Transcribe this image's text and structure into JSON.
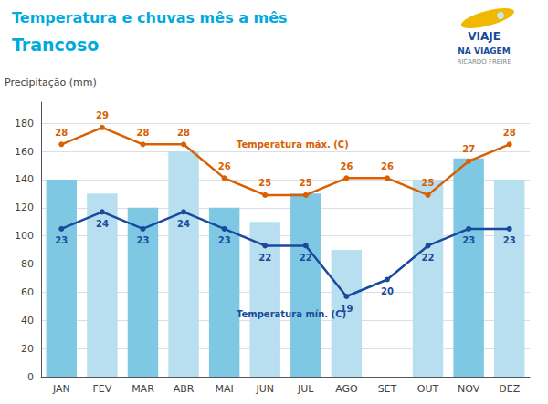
{
  "chart_data": {
    "type": "bar",
    "title": "Temperatura e chuvas mês a mês",
    "subtitle": "Trancoso",
    "ylabel": "Precipitação (mm)",
    "categories": [
      "JAN",
      "FEV",
      "MAR",
      "ABR",
      "MAI",
      "JUN",
      "JUL",
      "AGO",
      "SET",
      "OUT",
      "NOV",
      "DEZ"
    ],
    "series": [
      {
        "type": "bar",
        "values": [
          140,
          130,
          120,
          160,
          120,
          110,
          130,
          90,
          0,
          140,
          155,
          140
        ],
        "colors": [
          "#7ec8e3",
          "#b8dff0",
          "#7ec8e3",
          "#b8dff0",
          "#7ec8e3",
          "#b8dff0",
          "#7ec8e3",
          "#b8dff0",
          "#7ec8e3",
          "#b8dff0",
          "#7ec8e3",
          "#b8dff0"
        ]
      },
      {
        "name": "Temperatura máx. (C)",
        "type": "line",
        "axis": "y2",
        "color": "#d95f02",
        "marker": "circle",
        "data_labels": true,
        "values": [
          28,
          29,
          28,
          28,
          26,
          25,
          25,
          26,
          26,
          25,
          27,
          28
        ]
      },
      {
        "name": "Temperatura mín. (C)",
        "type": "line",
        "axis": "y2",
        "color": "#1a4a9c",
        "marker": "circle",
        "data_labels": true,
        "values": [
          23,
          24,
          23,
          24,
          23,
          22,
          22,
          19,
          20,
          22,
          23,
          23
        ]
      }
    ],
    "ylim": [
      0,
      195
    ],
    "yticks": [
      0,
      20,
      40,
      60,
      80,
      100,
      120,
      140,
      160,
      180
    ],
    "y2lim": [
      14.25,
      30.5
    ],
    "grid": true,
    "annotations": [
      "VIAJE",
      "NA VIAGEM",
      "RICARDO FREIRE"
    ]
  }
}
